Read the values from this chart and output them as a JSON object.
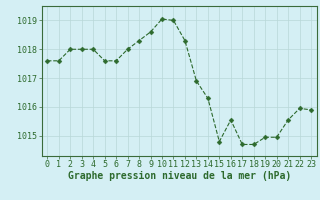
{
  "x": [
    0,
    1,
    2,
    3,
    4,
    5,
    6,
    7,
    8,
    9,
    10,
    11,
    12,
    13,
    14,
    15,
    16,
    17,
    18,
    19,
    20,
    21,
    22,
    23
  ],
  "y": [
    1017.6,
    1017.6,
    1018.0,
    1018.0,
    1018.0,
    1017.6,
    1017.6,
    1018.0,
    1018.3,
    1018.6,
    1019.05,
    1019.0,
    1018.3,
    1016.9,
    1016.3,
    1014.8,
    1015.55,
    1014.7,
    1014.7,
    1014.95,
    1014.95,
    1015.55,
    1015.95,
    1015.9
  ],
  "line_color": "#2d6a2d",
  "marker": "D",
  "marker_size": 2.5,
  "bg_color": "#d4eff4",
  "grid_color": "#b8d8d8",
  "border_color": "#3a6b3a",
  "xlabel": "Graphe pression niveau de la mer (hPa)",
  "xlabel_fontsize": 7,
  "tick_fontsize": 6,
  "yticks": [
    1015,
    1016,
    1017,
    1018,
    1019
  ],
  "xticks": [
    0,
    1,
    2,
    3,
    4,
    5,
    6,
    7,
    8,
    9,
    10,
    11,
    12,
    13,
    14,
    15,
    16,
    17,
    18,
    19,
    20,
    21,
    22,
    23
  ],
  "ylim": [
    1014.3,
    1019.5
  ],
  "xlim": [
    -0.5,
    23.5
  ]
}
